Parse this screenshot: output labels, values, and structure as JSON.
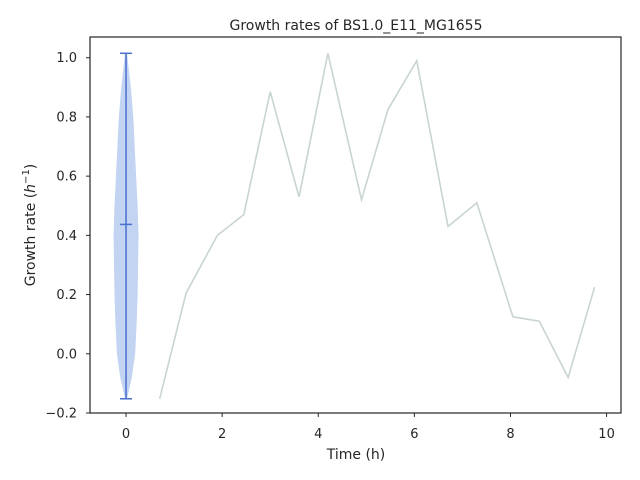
{
  "chart_data": {
    "type": "line",
    "title": "Growth rates of BS1.0_E11_MG1655",
    "xlabel": "Time (h)",
    "ylabel_prefix": "Growth rate (",
    "ylabel_var": "h",
    "ylabel_sup": "−1",
    "ylabel_suffix": ")",
    "xlim": [
      -0.75,
      10.3
    ],
    "ylim": [
      -0.2,
      1.07
    ],
    "x_ticks": [
      0,
      2,
      4,
      6,
      8,
      10
    ],
    "y_ticks": [
      -0.2,
      0.0,
      0.2,
      0.4,
      0.6,
      0.8,
      1.0
    ],
    "x_tick_labels": [
      "0",
      "2",
      "4",
      "6",
      "8",
      "10"
    ],
    "y_tick_labels": [
      "−0.2",
      "0.0",
      "0.2",
      "0.4",
      "0.6",
      "0.8",
      "1.0"
    ],
    "grid": false,
    "series": [
      {
        "color": "#c8d5d3",
        "x": [
          0.7,
          1.25,
          1.9,
          2.45,
          3.0,
          3.6,
          4.2,
          4.9,
          5.45,
          6.05,
          6.7,
          7.3,
          8.05,
          8.6,
          9.2,
          9.75
        ],
        "values": [
          -0.152,
          0.205,
          0.4,
          0.47,
          0.885,
          0.53,
          1.015,
          0.52,
          0.825,
          0.99,
          0.43,
          0.51,
          0.125,
          0.11,
          -0.08,
          0.225
        ]
      }
    ],
    "violin": {
      "position": 0,
      "color": "#aec6ee",
      "line_color": "#4a6fcf",
      "min": -0.152,
      "max": 1.015,
      "mean": 0.437,
      "profile_y": [
        -0.152,
        -0.08,
        0.0,
        0.1,
        0.2,
        0.3,
        0.4,
        0.5,
        0.6,
        0.7,
        0.8,
        0.9,
        1.015
      ],
      "profile_halfwidth": [
        0.02,
        0.12,
        0.19,
        0.22,
        0.24,
        0.25,
        0.26,
        0.24,
        0.21,
        0.18,
        0.15,
        0.1,
        0.02
      ]
    }
  }
}
